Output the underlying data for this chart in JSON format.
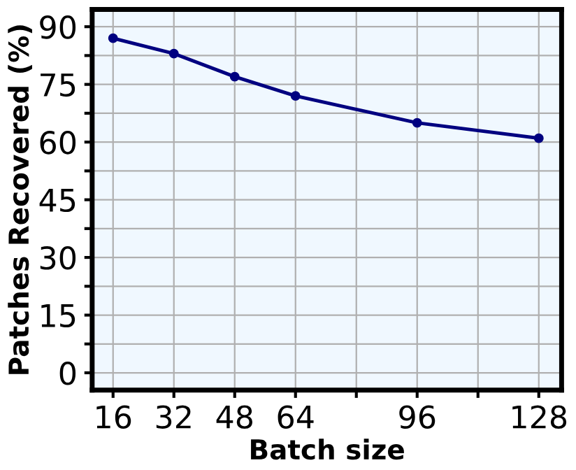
{
  "chart_data": {
    "type": "line",
    "xlabel": "Batch size",
    "ylabel": "Patches Recovered (%)",
    "x": [
      16,
      32,
      48,
      64,
      96,
      128
    ],
    "series": [
      {
        "color": "#000080",
        "values": [
          87,
          83,
          77,
          72,
          65,
          61
        ]
      }
    ],
    "marker": "circle",
    "line_style": "solid",
    "grid": true,
    "xlim": [
      10.5,
      134
    ],
    "ylim": [
      -4.5,
      94.5
    ],
    "xticks": [
      16,
      32,
      48,
      64,
      {
        "value": 80,
        "label": null
      },
      96,
      {
        "value": 112,
        "label": null
      },
      128
    ],
    "yticks": [
      0,
      {
        "value": 7.5,
        "label": null
      },
      15,
      {
        "value": 22.5,
        "label": null
      },
      30,
      {
        "value": 37.5,
        "label": null
      },
      45,
      {
        "value": 52.5,
        "label": null
      },
      60,
      {
        "value": 67.5,
        "label": null
      },
      75,
      {
        "value": 82.5,
        "label": null
      },
      90
    ]
  }
}
